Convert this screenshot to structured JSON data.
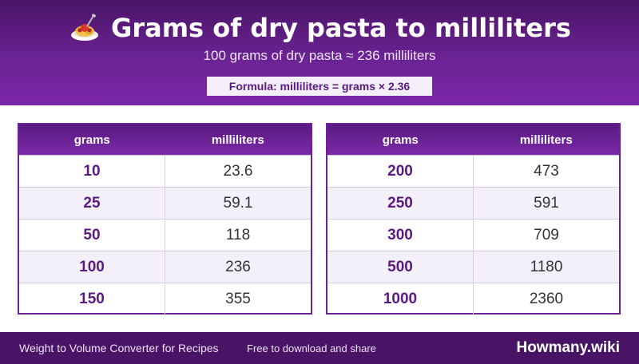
{
  "header": {
    "icon": "spaghetti-icon",
    "title": "Grams of dry pasta to milliliters",
    "subtitle": "100 grams of dry pasta ≈ 236 milliliters",
    "formula": "Formula: milliliters = grams × 2.36"
  },
  "tables": [
    {
      "headers": [
        "grams",
        "milliliters"
      ],
      "rows": [
        {
          "grams": "10",
          "ml": "23.6"
        },
        {
          "grams": "25",
          "ml": "59.1"
        },
        {
          "grams": "50",
          "ml": "118"
        },
        {
          "grams": "100",
          "ml": "236"
        },
        {
          "grams": "150",
          "ml": "355"
        }
      ]
    },
    {
      "headers": [
        "grams",
        "milliliters"
      ],
      "rows": [
        {
          "grams": "200",
          "ml": "473"
        },
        {
          "grams": "250",
          "ml": "591"
        },
        {
          "grams": "300",
          "ml": "709"
        },
        {
          "grams": "500",
          "ml": "1180"
        },
        {
          "grams": "1000",
          "ml": "2360"
        }
      ]
    }
  ],
  "footer": {
    "left": "Weight to Volume Converter for Recipes",
    "middle": "Free to download and share",
    "brand": "Howmany.wiki"
  },
  "colors": {
    "accent": "#6b2394",
    "header_dark": "#4a1466",
    "row_alt": "#f4f0fa"
  }
}
